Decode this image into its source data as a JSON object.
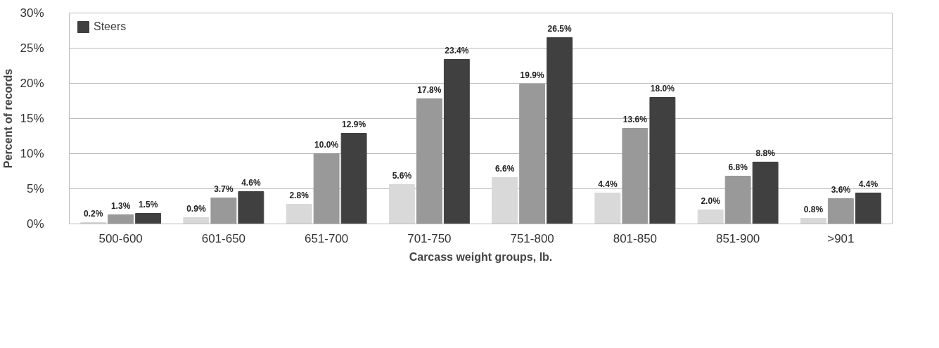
{
  "chart_data": {
    "type": "bar",
    "xlabel": "Carcass weight groups, lb.",
    "ylabel": "Percent of records",
    "categories": [
      "500-600",
      "601-650",
      "651-700",
      "701-750",
      "751-800",
      "801-850",
      "851-900",
      ">901"
    ],
    "series": [
      {
        "color": "#d9d9d9",
        "values": [
          0.2,
          0.9,
          2.8,
          5.6,
          6.6,
          4.4,
          2.0,
          0.8
        ],
        "value_labels": [
          "0.2%",
          "0.9%",
          "2.8%",
          "5.6%",
          "6.6%",
          "4.4%",
          "2.0%",
          "0.8%"
        ]
      },
      {
        "color": "#999999",
        "values": [
          1.3,
          3.7,
          10.0,
          17.8,
          19.9,
          13.6,
          6.8,
          3.6
        ],
        "value_labels": [
          "1.3%",
          "3.7%",
          "10.0%",
          "17.8%",
          "19.9%",
          "13.6%",
          "6.8%",
          "3.6%"
        ]
      },
      {
        "name": "Steers",
        "color": "#404040",
        "values": [
          1.5,
          4.6,
          12.9,
          23.4,
          26.5,
          18.0,
          8.8,
          4.4
        ],
        "value_labels": [
          "1.5%",
          "4.6%",
          "12.9%",
          "23.4%",
          "26.5%",
          "18.0%",
          "8.8%",
          "4.4%"
        ]
      }
    ],
    "ylim": [
      0,
      30
    ],
    "yticks": [
      {
        "value": 0,
        "label": "0%"
      },
      {
        "value": 5,
        "label": "5%"
      },
      {
        "value": 10,
        "label": "10%"
      },
      {
        "value": 15,
        "label": "15%"
      },
      {
        "value": 20,
        "label": "20%"
      },
      {
        "value": 25,
        "label": "25%"
      },
      {
        "value": 30,
        "label": "30%"
      }
    ],
    "grid": "y",
    "legend": "top left"
  }
}
